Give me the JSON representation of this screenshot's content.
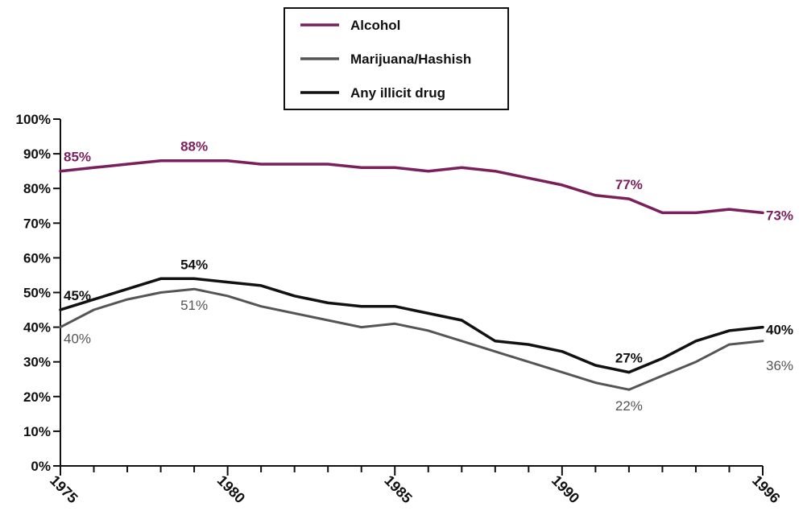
{
  "chart_data": {
    "type": "line",
    "x": [
      1975,
      1976,
      1977,
      1978,
      1979,
      1980,
      1981,
      1982,
      1983,
      1984,
      1985,
      1986,
      1987,
      1988,
      1989,
      1990,
      1991,
      1992,
      1993,
      1994,
      1995,
      1996
    ],
    "xlim": [
      1975,
      1996
    ],
    "ylim": [
      0,
      100
    ],
    "y_ticks": [
      "0%",
      "10%",
      "20%",
      "30%",
      "40%",
      "50%",
      "60%",
      "70%",
      "80%",
      "90%",
      "100%"
    ],
    "x_tick_labels": [
      {
        "value": 1975,
        "label": "1975"
      },
      {
        "value": 1980,
        "label": "1980"
      },
      {
        "value": 1985,
        "label": "1985"
      },
      {
        "value": 1990,
        "label": "1990"
      },
      {
        "value": 1996,
        "label": "1996"
      }
    ],
    "grid": false,
    "legend_position": "top-center",
    "series": [
      {
        "name": "Alcohol",
        "color": "#7a1f5c",
        "values": [
          85,
          86,
          87,
          88,
          88,
          88,
          87,
          87,
          87,
          86,
          86,
          85,
          86,
          85,
          83,
          81,
          78,
          77,
          73,
          73,
          74,
          73
        ],
        "labels": [
          {
            "x": 1975,
            "y": 85,
            "text": "85%"
          },
          {
            "x": 1979,
            "y": 88,
            "text": "88%"
          },
          {
            "x": 1992,
            "y": 77,
            "text": "77%"
          },
          {
            "x": 1996,
            "y": 73,
            "text": "73%"
          }
        ]
      },
      {
        "name": "Marijuana/Hashish",
        "color": "#555555",
        "values": [
          40,
          45,
          48,
          50,
          51,
          49,
          46,
          44,
          42,
          40,
          41,
          39,
          36,
          33,
          30,
          27,
          24,
          22,
          26,
          30,
          35,
          36
        ],
        "labels": [
          {
            "x": 1975,
            "y": 40,
            "text": "40%"
          },
          {
            "x": 1979,
            "y": 51,
            "text": "51%"
          },
          {
            "x": 1992,
            "y": 22,
            "text": "22%"
          },
          {
            "x": 1996,
            "y": 36,
            "text": "36%"
          }
        ]
      },
      {
        "name": "Any illicit drug",
        "color": "#111111",
        "values": [
          45,
          48,
          51,
          54,
          54,
          53,
          52,
          49,
          47,
          46,
          46,
          44,
          42,
          36,
          35,
          33,
          29,
          27,
          31,
          36,
          39,
          40
        ],
        "labels": [
          {
            "x": 1975,
            "y": 45,
            "text": "45%"
          },
          {
            "x": 1979,
            "y": 54,
            "text": "54%"
          },
          {
            "x": 1992,
            "y": 27,
            "text": "27%"
          },
          {
            "x": 1996,
            "y": 40,
            "text": "40%"
          }
        ]
      }
    ]
  }
}
